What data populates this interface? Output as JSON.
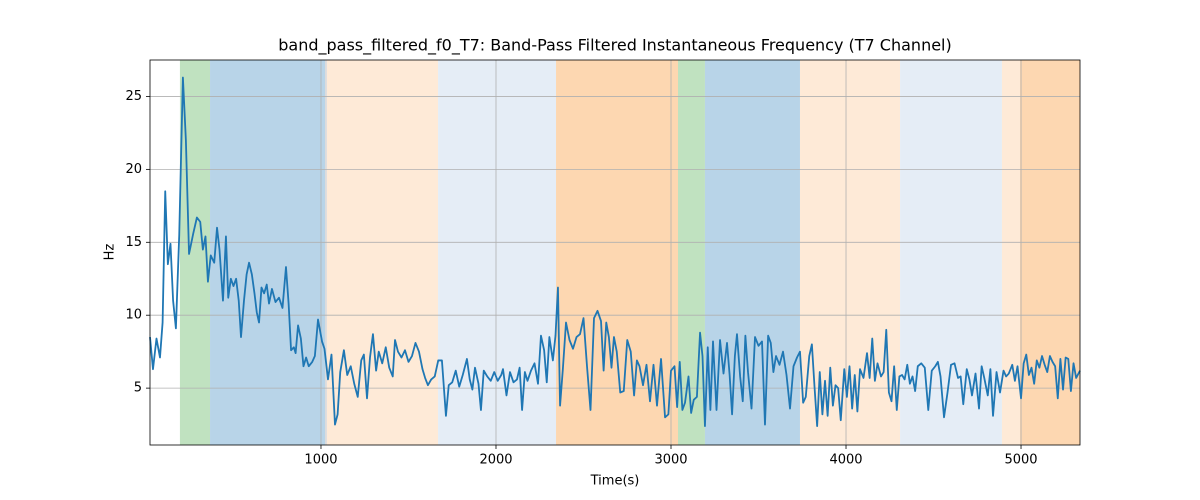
{
  "chart_data": {
    "type": "line",
    "title": "band_pass_filtered_f0_T7: Band-Pass Filtered Instantaneous Frequency (T7 Channel)",
    "xlabel": "Time(s)",
    "ylabel": "Hz",
    "xlim": [
      23,
      5337
    ],
    "ylim": [
      1.1,
      27.5
    ],
    "xticks": [
      1000,
      2000,
      3000,
      4000,
      5000
    ],
    "yticks": [
      5,
      10,
      15,
      20,
      25
    ],
    "grid": true,
    "spans": [
      {
        "start": 194,
        "end": 366,
        "color": "#c0e2c0"
      },
      {
        "start": 366,
        "end": 1023,
        "color": "#b8d4e8"
      },
      {
        "start": 1023,
        "end": 1034,
        "color": "#dcdcdc"
      },
      {
        "start": 1034,
        "end": 1669,
        "color": "#feead7"
      },
      {
        "start": 1669,
        "end": 2343,
        "color": "#e5edf6"
      },
      {
        "start": 2343,
        "end": 3040,
        "color": "#fdd7b1"
      },
      {
        "start": 3040,
        "end": 3194,
        "color": "#c0e2c0"
      },
      {
        "start": 3194,
        "end": 3737,
        "color": "#b8d4e8"
      },
      {
        "start": 3737,
        "end": 4309,
        "color": "#feead7"
      },
      {
        "start": 4309,
        "end": 4891,
        "color": "#e5edf6"
      },
      {
        "start": 4891,
        "end": 4994,
        "color": "#feead7"
      },
      {
        "start": 4994,
        "end": 5337,
        "color": "#fdd7b1"
      }
    ],
    "x": [
      23,
      40,
      60,
      80,
      95,
      110,
      125,
      140,
      155,
      171,
      190,
      211,
      228,
      246,
      270,
      291,
      310,
      325,
      340,
      354,
      370,
      390,
      406,
      420,
      440,
      457,
      470,
      485,
      500,
      515,
      530,
      543,
      560,
      575,
      589,
      605,
      620,
      633,
      646,
      660,
      675,
      690,
      703,
      720,
      740,
      760,
      780,
      800,
      815,
      829,
      845,
      855,
      869,
      885,
      900,
      915,
      930,
      950,
      965,
      983,
      1006,
      1020,
      1040,
      1060,
      1080,
      1095,
      1110,
      1131,
      1150,
      1170,
      1190,
      1210,
      1230,
      1245,
      1263,
      1280,
      1297,
      1315,
      1330,
      1350,
      1370,
      1390,
      1410,
      1423,
      1440,
      1460,
      1480,
      1500,
      1520,
      1540,
      1560,
      1580,
      1595,
      1611,
      1630,
      1650,
      1670,
      1691,
      1714,
      1730,
      1750,
      1770,
      1790,
      1810,
      1834,
      1850,
      1865,
      1880,
      1900,
      1914,
      1930,
      1950,
      1970,
      1990,
      2010,
      2030,
      2040,
      2060,
      2080,
      2100,
      2120,
      2135,
      2149,
      2165,
      2180,
      2200,
      2220,
      2240,
      2257,
      2275,
      2290,
      2305,
      2325,
      2340,
      2354,
      2366,
      2382,
      2400,
      2420,
      2440,
      2460,
      2480,
      2500,
      2520,
      2540,
      2560,
      2580,
      2600,
      2615,
      2630,
      2645,
      2660,
      2674,
      2690,
      2710,
      2730,
      2750,
      2770,
      2789,
      2805,
      2820,
      2840,
      2860,
      2880,
      2900,
      2920,
      2943,
      2966,
      2985,
      3000,
      3020,
      3035,
      3050,
      3065,
      3080,
      3100,
      3115,
      3130,
      3148,
      3166,
      3180,
      3194,
      3210,
      3225,
      3240,
      3260,
      3280,
      3300,
      3320,
      3335,
      3349,
      3365,
      3377,
      3395,
      3410,
      3425,
      3440,
      3460,
      3480,
      3500,
      3520,
      3537,
      3555,
      3570,
      3585,
      3600,
      3620,
      3640,
      3660,
      3680,
      3700,
      3720,
      3737,
      3755,
      3770,
      3790,
      3805,
      3820,
      3835,
      3850,
      3865,
      3880,
      3895,
      3910,
      3925,
      3940,
      3955,
      3970,
      3990,
      4005,
      4020,
      4035,
      4050,
      4065,
      4080,
      4100,
      4120,
      4135,
      4150,
      4165,
      4180,
      4200,
      4215,
      4230,
      4245,
      4260,
      4275,
      4290,
      4305,
      4320,
      4335,
      4350,
      4365,
      4380,
      4395,
      4410,
      4430,
      4450,
      4470,
      4490,
      4510,
      4525,
      4540,
      4560,
      4580,
      4600,
      4620,
      4640,
      4655,
      4670,
      4690,
      4705,
      4720,
      4740,
      4760,
      4775,
      4790,
      4810,
      4825,
      4840,
      4860,
      4880,
      4900,
      4915,
      4930,
      4950,
      4965,
      4980,
      5000,
      5015,
      5030,
      5045,
      5060,
      5075,
      5090,
      5105,
      5120,
      5135,
      5150,
      5165,
      5180,
      5195,
      5210,
      5225,
      5240,
      5255,
      5270,
      5285,
      5300,
      5315,
      5337
    ],
    "series": [
      {
        "color": "#1f77b4",
        "values": [
          8.5,
          6.3,
          8.4,
          7.1,
          9.5,
          18.5,
          13.5,
          14.9,
          11,
          9.1,
          15.5,
          26.3,
          22,
          14.2,
          15.6,
          16.7,
          16.4,
          14.5,
          15.4,
          12.3,
          14.1,
          13.6,
          16,
          14.5,
          11,
          15.4,
          11.2,
          12.5,
          12,
          12.5,
          11,
          8.5,
          11,
          12.8,
          13.6,
          12.8,
          11.5,
          10.2,
          9.5,
          11.9,
          11.5,
          12.1,
          10.8,
          11.8,
          10.9,
          11.2,
          10.5,
          13.3,
          10.8,
          7.6,
          7.8,
          7.4,
          9.3,
          8.4,
          6.5,
          7.1,
          6.5,
          6.8,
          7.2,
          9.7,
          8.2,
          7.7,
          5.6,
          7.3,
          2.5,
          3.2,
          6.1,
          7.6,
          5.9,
          6.5,
          5.3,
          4.4,
          6.9,
          7.3,
          4.3,
          7.1,
          8.7,
          6.2,
          7.5,
          6.7,
          7.8,
          6.4,
          5.8,
          8.3,
          7.5,
          7.1,
          7.6,
          6.8,
          7.2,
          8.1,
          7.5,
          6.3,
          5.7,
          5.2,
          5.6,
          5.8,
          6.9,
          6.9,
          3.1,
          5.2,
          5.4,
          6.2,
          5.1,
          5.9,
          7,
          5.6,
          4.9,
          6.4,
          5.3,
          3.5,
          6.2,
          5.8,
          5.5,
          6.1,
          5.5,
          5.9,
          6.3,
          4.5,
          6.1,
          5.4,
          5.6,
          6.4,
          3.5,
          6.1,
          5.5,
          6.2,
          6.7,
          5.3,
          8.6,
          7.6,
          5.4,
          8.5,
          6.9,
          8.6,
          11.9,
          3.8,
          6.3,
          9.5,
          8.3,
          7.7,
          8.5,
          8.7,
          9.8,
          6.5,
          3.5,
          9.8,
          10.3,
          9.6,
          6.2,
          9.5,
          8.5,
          6.4,
          8.5,
          7.5,
          4.7,
          4.8,
          8.3,
          7.5,
          4.5,
          6.9,
          6.5,
          5.2,
          6.6,
          4.1,
          6.6,
          3.8,
          7,
          3,
          3.2,
          6.2,
          6.5,
          3.7,
          6.8,
          3.5,
          4,
          5.8,
          3.3,
          4.2,
          4.4,
          8.8,
          7.2,
          2.4,
          7.8,
          3.5,
          8.2,
          3.5,
          8.3,
          6,
          8.1,
          5.9,
          3.2,
          7.2,
          8.7,
          5.8,
          4.1,
          8.6,
          6.1,
          3.6,
          8.5,
          7.9,
          8.2,
          2.5,
          8.6,
          8.1,
          6.1,
          7.2,
          6.6,
          7.5,
          5.9,
          3.6,
          6.5,
          7.1,
          7.5,
          4,
          4.4,
          7.2,
          8,
          5.1,
          2.4,
          6.1,
          3.2,
          5.5,
          3.1,
          6.4,
          3.8,
          5.2,
          5,
          2.8,
          6.3,
          4.4,
          6.5,
          3.6,
          5.9,
          3.4,
          6.3,
          5.7,
          7.4,
          5.7,
          8.4,
          5.5,
          6.7,
          5.8,
          6.1,
          9,
          4.7,
          4.1,
          6.5,
          3.5,
          5.8,
          5.9,
          5.6,
          6.6,
          5.3,
          5.8,
          4.8,
          6.5,
          6.7,
          6.4,
          3.5,
          6.2,
          6.5,
          6.8,
          5.8,
          3,
          4.7,
          6.6,
          6.7,
          5.7,
          5.8,
          3.9,
          6.3,
          5.6,
          4.5,
          6,
          3.6,
          6.5,
          5.7,
          4.5,
          6.3,
          3.1,
          6.1,
          4.7,
          6.2,
          5.8,
          6,
          6.6,
          5.5,
          6.5,
          4.3,
          6.7,
          7.3,
          5.9,
          6.4,
          5.3,
          6.9,
          6.4,
          7.2,
          6.6,
          6.1,
          7.2,
          6.8,
          6.5,
          4.3,
          7,
          4.9,
          7.1,
          7,
          4.8,
          6.7,
          5.7,
          6.2
        ]
      }
    ]
  }
}
